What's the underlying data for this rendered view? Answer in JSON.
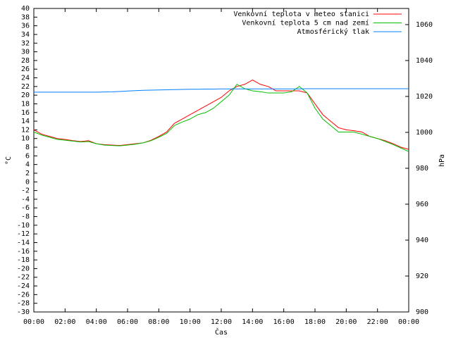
{
  "chart_data": {
    "type": "line",
    "xlabel": "Čas",
    "ylabel": "°C",
    "y2label": "hPa",
    "x": [
      0,
      0.5,
      1,
      1.5,
      2,
      2.5,
      3,
      3.5,
      4,
      4.5,
      5,
      5.5,
      6,
      6.5,
      7,
      7.5,
      8,
      8.5,
      9,
      9.5,
      10,
      10.5,
      11,
      11.5,
      12,
      12.5,
      13,
      13.5,
      14,
      14.5,
      15,
      15.5,
      16,
      16.5,
      17,
      17.5,
      18,
      18.5,
      19,
      19.5,
      20,
      20.5,
      21,
      21.5,
      22,
      22.5,
      23,
      23.5,
      24
    ],
    "xlim": [
      0,
      24
    ],
    "xticks": [
      {
        "value": 0,
        "label": "00:00"
      },
      {
        "value": 2,
        "label": "02:00"
      },
      {
        "value": 4,
        "label": "04:00"
      },
      {
        "value": 6,
        "label": "06:00"
      },
      {
        "value": 8,
        "label": "08:00"
      },
      {
        "value": 10,
        "label": "10:00"
      },
      {
        "value": 12,
        "label": "12:00"
      },
      {
        "value": 14,
        "label": "14:00"
      },
      {
        "value": 16,
        "label": "16:00"
      },
      {
        "value": 18,
        "label": "18:00"
      },
      {
        "value": 20,
        "label": "20:00"
      },
      {
        "value": 22,
        "label": "22:00"
      },
      {
        "value": 24,
        "label": "00:00"
      }
    ],
    "ylim": [
      -30,
      40
    ],
    "yticks": [
      -30,
      -28,
      -26,
      -24,
      -22,
      -20,
      -18,
      -16,
      -14,
      -12,
      -10,
      -8,
      -6,
      -4,
      -2,
      0,
      2,
      4,
      6,
      8,
      10,
      12,
      14,
      16,
      18,
      20,
      22,
      24,
      26,
      28,
      30,
      32,
      34,
      36,
      38,
      40
    ],
    "y2lim": [
      900,
      1069
    ],
    "y2ticks": [
      900,
      920,
      940,
      960,
      980,
      1000,
      1020,
      1040,
      1060
    ],
    "legend": "top right",
    "series": [
      {
        "name": "Venkovní teplota v meteo stanici",
        "color": "#ff0000",
        "values": [
          12,
          11,
          10.5,
          10,
          9.8,
          9.5,
          9.3,
          9.5,
          8.8,
          8.6,
          8.5,
          8.4,
          8.6,
          8.8,
          9,
          9.6,
          10.5,
          11.5,
          13.5,
          14.5,
          15.5,
          16.5,
          17.5,
          18.5,
          19.5,
          21,
          22,
          22.5,
          23.5,
          22.5,
          22,
          21,
          21,
          21,
          21,
          20.5,
          18,
          15.5,
          14,
          12.5,
          12,
          11.8,
          11.5,
          10.5,
          10,
          9.5,
          8.8,
          8,
          7.5
        ]
      },
      {
        "name": "Venkovní teplota 5 cm nad zemí",
        "color": "#00c000",
        "values": [
          11.5,
          10.8,
          10.3,
          9.8,
          9.6,
          9.4,
          9.2,
          9.3,
          8.8,
          8.5,
          8.4,
          8.3,
          8.5,
          8.7,
          9,
          9.5,
          10.3,
          11.2,
          13,
          13.8,
          14.5,
          15.5,
          16,
          17,
          18.5,
          20,
          22.5,
          21.5,
          21,
          20.8,
          20.5,
          20.5,
          20.5,
          20.8,
          22,
          20.5,
          17,
          14.5,
          13,
          11.5,
          11.5,
          11.5,
          11,
          10.5,
          10,
          9.3,
          8.6,
          7.8,
          7
        ]
      },
      {
        "name": "Atmosférický tlak",
        "color": "#0080ff",
        "axis": "y2",
        "values": [
          1022.4,
          1022.4,
          1022.4,
          1022.4,
          1022.4,
          1022.4,
          1022.4,
          1022.4,
          1022.4,
          1022.5,
          1022.6,
          1022.8,
          1023,
          1023.2,
          1023.4,
          1023.5,
          1023.6,
          1023.7,
          1023.8,
          1023.9,
          1024,
          1024,
          1024.1,
          1024.1,
          1024.2,
          1024.2,
          1024.2,
          1024.2,
          1024.2,
          1024.2,
          1024.2,
          1024.2,
          1024.2,
          1024.2,
          1024.2,
          1024.3,
          1024.3,
          1024.3,
          1024.3,
          1024.3,
          1024.3,
          1024.3,
          1024.3,
          1024.3,
          1024.3,
          1024.3,
          1024.3,
          1024.3,
          1024.3
        ]
      }
    ]
  }
}
